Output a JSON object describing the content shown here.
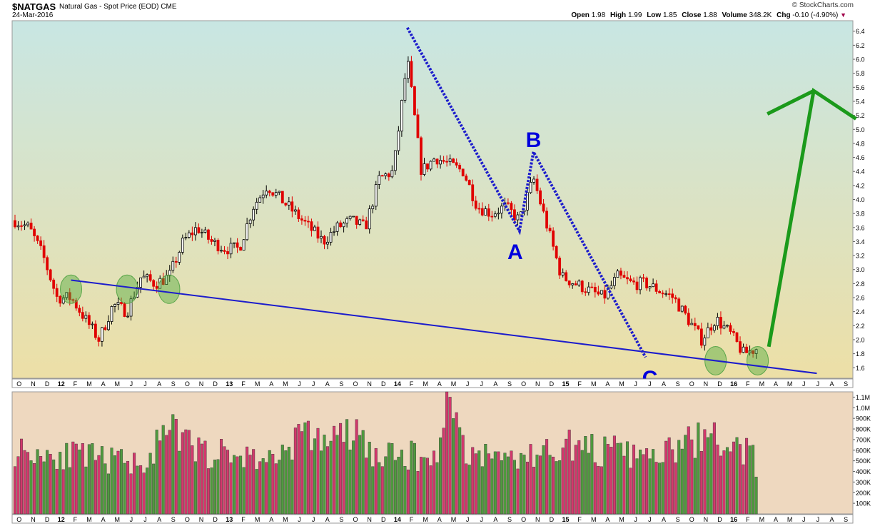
{
  "header": {
    "ticker": "$NATGAS",
    "description": "Natural Gas - Spot Price (EOD)",
    "exchange": "CME",
    "date": "24-Mar-2016",
    "watermark": "© StockCharts.com",
    "quote": [
      {
        "label": "Open",
        "value": "1.98"
      },
      {
        "label": "High",
        "value": "1.99"
      },
      {
        "label": "Low",
        "value": "1.85"
      },
      {
        "label": "Close",
        "value": "1.88"
      },
      {
        "label": "Volume",
        "value": "348.2K"
      },
      {
        "label": "Chg",
        "value": "-0.10 (-4.90%)"
      }
    ],
    "chg_icon": "triangle-down-icon"
  },
  "chart_data": [
    {
      "type": "candlestick",
      "x_months": [
        "O",
        "N",
        "D",
        "12",
        "F",
        "M",
        "A",
        "M",
        "J",
        "J",
        "A",
        "S",
        "O",
        "N",
        "D",
        "13",
        "F",
        "M",
        "A",
        "M",
        "J",
        "J",
        "A",
        "S",
        "O",
        "N",
        "D",
        "14",
        "F",
        "M",
        "A",
        "M",
        "J",
        "J",
        "A",
        "S",
        "O",
        "N",
        "D",
        "15",
        "F",
        "M",
        "A",
        "M",
        "J",
        "J",
        "A",
        "S",
        "O",
        "N",
        "D",
        "16",
        "F",
        "M",
        "A",
        "M",
        "J",
        "J",
        "A",
        "S"
      ],
      "y_ticks": [
        1.6,
        1.8,
        2.0,
        2.2,
        2.4,
        2.6,
        2.8,
        3.0,
        3.2,
        3.4,
        3.6,
        3.8,
        4.0,
        4.2,
        4.4,
        4.6,
        4.8,
        5.0,
        5.2,
        5.4,
        5.6,
        5.8,
        6.0,
        6.2,
        6.4
      ],
      "ylim": [
        1.45,
        6.55
      ],
      "background": [
        "#c8e6e3",
        "#eddfa6"
      ],
      "up_color": "#ffffff",
      "down_color": "#e00000",
      "close_path": [
        [
          "2011-10",
          3.7
        ],
        [
          "2011-11",
          3.6
        ],
        [
          "2011-12",
          3.2
        ],
        [
          "2012-01",
          2.6
        ],
        [
          "2012-02",
          2.6
        ],
        [
          "2012-03",
          2.3
        ],
        [
          "2012-04",
          2.0
        ],
        [
          "2012-05",
          2.5
        ],
        [
          "2012-06",
          2.4
        ],
        [
          "2012-07",
          2.9
        ],
        [
          "2012-08",
          2.8
        ],
        [
          "2012-09",
          2.9
        ],
        [
          "2012-10",
          3.4
        ],
        [
          "2012-11",
          3.6
        ],
        [
          "2012-12",
          3.4
        ],
        [
          "2013-01",
          3.3
        ],
        [
          "2013-02",
          3.3
        ],
        [
          "2013-03",
          3.9
        ],
        [
          "2013-04",
          4.2
        ],
        [
          "2013-05",
          4.0
        ],
        [
          "2013-06",
          3.8
        ],
        [
          "2013-07",
          3.6
        ],
        [
          "2013-08",
          3.4
        ],
        [
          "2013-09",
          3.6
        ],
        [
          "2013-10",
          3.7
        ],
        [
          "2013-11",
          3.6
        ],
        [
          "2013-12",
          4.3
        ],
        [
          "2014-01",
          4.4
        ],
        [
          "2014-02",
          6.0
        ],
        [
          "2014-03",
          4.4
        ],
        [
          "2014-04",
          4.6
        ],
        [
          "2014-05",
          4.5
        ],
        [
          "2014-06",
          4.4
        ],
        [
          "2014-07",
          3.9
        ],
        [
          "2014-08",
          3.8
        ],
        [
          "2014-09",
          3.9
        ],
        [
          "2014-10",
          3.7
        ],
        [
          "2014-11",
          4.3
        ],
        [
          "2014-12",
          3.6
        ],
        [
          "2015-01",
          2.9
        ],
        [
          "2015-02",
          2.8
        ],
        [
          "2015-03",
          2.7
        ],
        [
          "2015-04",
          2.6
        ],
        [
          "2015-05",
          2.9
        ],
        [
          "2015-06",
          2.8
        ],
        [
          "2015-07",
          2.8
        ],
        [
          "2015-08",
          2.7
        ],
        [
          "2015-09",
          2.6
        ],
        [
          "2015-10",
          2.3
        ],
        [
          "2015-11",
          2.0
        ],
        [
          "2015-12",
          2.3
        ],
        [
          "2016-01",
          2.1
        ],
        [
          "2016-02",
          1.8
        ],
        [
          "2016-03",
          1.88
        ]
      ],
      "annotations": {
        "labels": [
          "A",
          "B",
          "C"
        ],
        "label_color": "#0000dd",
        "trendline": {
          "from": [
            "2012-02",
            2.85
          ],
          "to": [
            "2016-06",
            1.52
          ]
        },
        "abc_path": [
          [
            "2014-02",
            6.45
          ],
          [
            "2014-10",
            3.55
          ],
          [
            "2014-11",
            4.68
          ],
          [
            "2015-07",
            1.75
          ]
        ],
        "projection_color": "#1b9a1b",
        "projection": [
          [
            "2016-04",
            1.9
          ],
          [
            "2016-07",
            5.55
          ],
          [
            "2016-09",
            5.15
          ]
        ],
        "arrow_left": [
          "2016-04",
          5.22
        ],
        "highlight_circles": [
          "2012-02",
          "2012-06",
          "2012-09",
          "2015-12",
          "2016-03"
        ]
      }
    },
    {
      "type": "bar",
      "series_name": "Volume",
      "y_ticks": [
        "1.1M",
        "1.0M",
        "900K",
        "800K",
        "700K",
        "600K",
        "500K",
        "400K",
        "300K",
        "200K",
        "100K"
      ],
      "ylim": [
        0,
        1150
      ],
      "up_color": "#4f9a3e",
      "down_color": "#d2386c",
      "weekly_level_k": [
        [
          0,
          620
        ],
        [
          20,
          560
        ],
        [
          30,
          520
        ],
        [
          40,
          500
        ],
        [
          48,
          800
        ],
        [
          58,
          600
        ],
        [
          64,
          580
        ],
        [
          72,
          560
        ],
        [
          80,
          520
        ],
        [
          88,
          760
        ],
        [
          98,
          720
        ],
        [
          106,
          780
        ],
        [
          112,
          540
        ],
        [
          122,
          570
        ],
        [
          130,
          530
        ],
        [
          135,
          1150
        ],
        [
          140,
          600
        ],
        [
          148,
          560
        ],
        [
          160,
          550
        ],
        [
          170,
          680
        ],
        [
          180,
          620
        ],
        [
          188,
          600
        ],
        [
          194,
          540
        ],
        [
          202,
          580
        ],
        [
          214,
          760
        ],
        [
          222,
          640
        ],
        [
          230,
          580
        ],
        [
          238,
          590
        ],
        [
          246,
          550
        ],
        [
          252,
          500
        ],
        [
          264,
          500
        ],
        [
          276,
          520
        ]
      ]
    }
  ]
}
